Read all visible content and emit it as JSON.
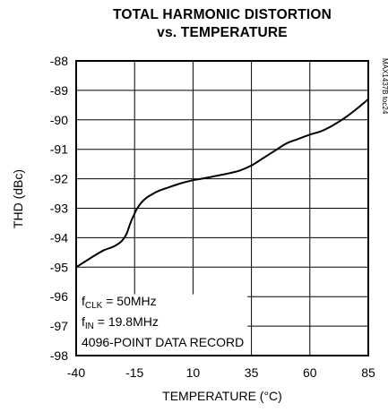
{
  "chart_data": {
    "type": "line",
    "title_line1": "TOTAL HARMONIC DISTORTION",
    "title_line2": "vs. TEMPERATURE",
    "xlabel": "TEMPERATURE (°C)",
    "ylabel": "THD (dBc)",
    "xlim": [
      -40,
      85
    ],
    "ylim": [
      -98,
      -88
    ],
    "xticks": [
      -40,
      -15,
      10,
      35,
      60,
      85
    ],
    "yticks": [
      -88,
      -89,
      -90,
      -91,
      -92,
      -93,
      -94,
      -95,
      -96,
      -97,
      -98
    ],
    "grid": true,
    "x": [
      -40,
      -36,
      -32,
      -28,
      -24,
      -21,
      -19,
      -18,
      -17,
      -16,
      -15,
      -14,
      -12,
      -10,
      -8,
      -5,
      0,
      5,
      10,
      15,
      20,
      25,
      30,
      35,
      40,
      45,
      50,
      55,
      60,
      65,
      70,
      75,
      80,
      85
    ],
    "y": [
      -95.0,
      -94.8,
      -94.6,
      -94.42,
      -94.3,
      -94.15,
      -93.95,
      -93.78,
      -93.55,
      -93.35,
      -93.18,
      -93.02,
      -92.8,
      -92.65,
      -92.55,
      -92.42,
      -92.28,
      -92.15,
      -92.05,
      -91.98,
      -91.9,
      -91.82,
      -91.72,
      -91.55,
      -91.3,
      -91.05,
      -90.8,
      -90.65,
      -90.5,
      -90.38,
      -90.18,
      -89.93,
      -89.63,
      -89.3
    ],
    "annotations": [
      {
        "main": "f",
        "sub": "CLK",
        "rest": " = 50MHz"
      },
      {
        "main": "f",
        "sub": "IN",
        "rest": " = 19.8MHz"
      },
      {
        "main": "4096-POINT DATA RECORD",
        "sub": "",
        "rest": ""
      }
    ],
    "watermark": "MAX1437B toc24"
  }
}
